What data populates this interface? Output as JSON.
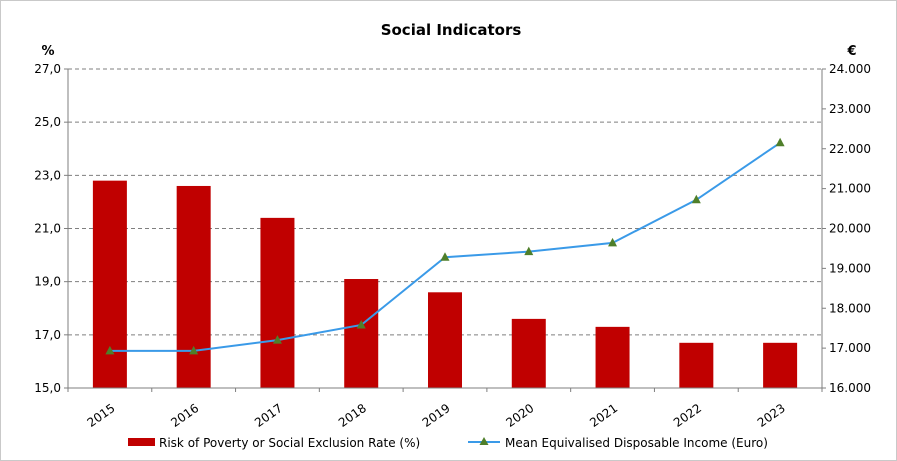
{
  "chart_data": {
    "type": "bar+line",
    "title": "Social Indicators",
    "categories": [
      "2015",
      "2016",
      "2017",
      "2018",
      "2019",
      "2020",
      "2021",
      "2022",
      "2023"
    ],
    "left_axis": {
      "unit": "%",
      "ylim": [
        15.0,
        27.0
      ],
      "ticks": [
        "15,0",
        "17,0",
        "19,0",
        "21,0",
        "23,0",
        "25,0",
        "27,0"
      ],
      "tick_values": [
        15,
        17,
        19,
        21,
        23,
        25,
        27
      ]
    },
    "right_axis": {
      "unit": "€",
      "ylim": [
        16000,
        24000
      ],
      "ticks": [
        "16.000",
        "17.000",
        "18.000",
        "19.000",
        "20.000",
        "21.000",
        "22.000",
        "23.000",
        "24.000"
      ],
      "tick_values": [
        16000,
        17000,
        18000,
        19000,
        20000,
        21000,
        22000,
        23000,
        24000
      ]
    },
    "series": [
      {
        "name": "Risk of Poverty or Social Exclusion Rate (%)",
        "type": "bar",
        "axis": "left",
        "color": "#c00000",
        "values": [
          22.8,
          22.6,
          21.4,
          19.1,
          18.6,
          17.6,
          17.3,
          16.7,
          16.7
        ]
      },
      {
        "name": "Mean Equivalised Disposable Income (Euro)",
        "type": "line",
        "axis": "right",
        "color": "#3a9ae8",
        "marker_color": "#4f7f2a",
        "values": [
          16930,
          16930,
          17200,
          17580,
          19280,
          19420,
          19640,
          20720,
          22150
        ]
      }
    ],
    "grid": true,
    "legend_position": "bottom"
  }
}
